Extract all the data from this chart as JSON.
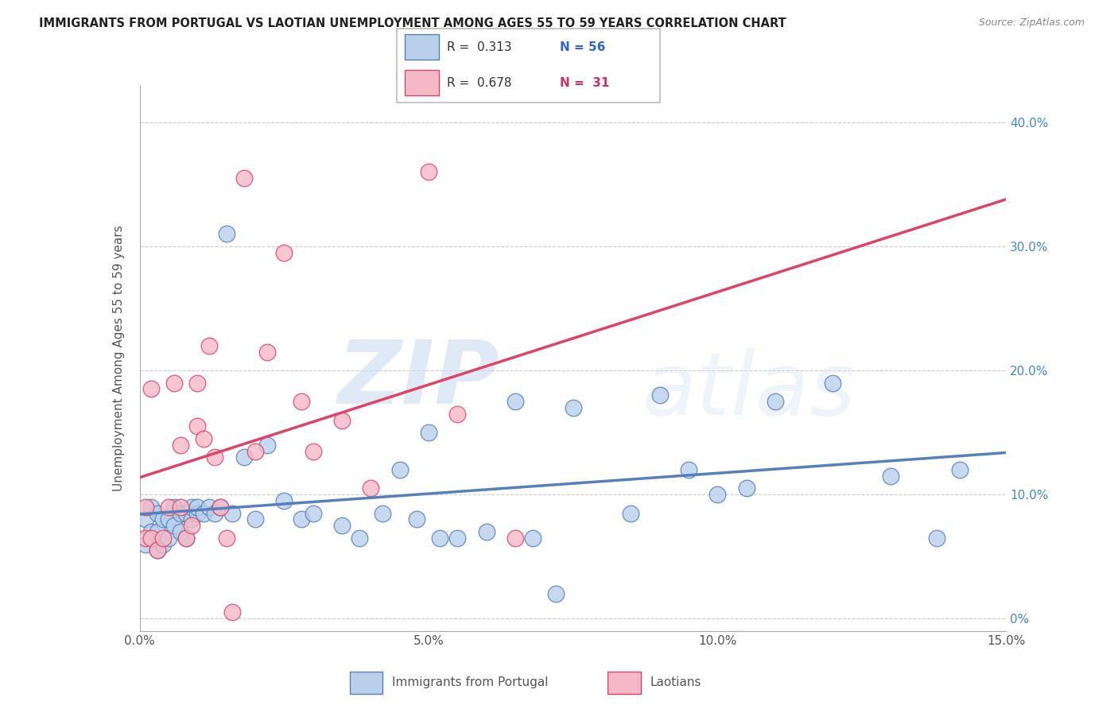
{
  "title": "IMMIGRANTS FROM PORTUGAL VS LAOTIAN UNEMPLOYMENT AMONG AGES 55 TO 59 YEARS CORRELATION CHART",
  "source": "Source: ZipAtlas.com",
  "ylabel": "Unemployment Among Ages 55 to 59 years",
  "xlim": [
    0.0,
    0.15
  ],
  "ylim": [
    -0.01,
    0.43
  ],
  "xticks": [
    0.0,
    0.025,
    0.05,
    0.075,
    0.1,
    0.125,
    0.15
  ],
  "xticklabels": [
    "0.0%",
    "",
    "5.0%",
    "",
    "10.0%",
    "",
    "15.0%"
  ],
  "yticks": [
    0.0,
    0.1,
    0.2,
    0.3,
    0.4
  ],
  "yticklabels": [
    "0%",
    "10.0%",
    "20.0%",
    "30.0%",
    "40.0%"
  ],
  "legend1_r": "0.313",
  "legend1_n": "56",
  "legend2_r": "0.678",
  "legend2_n": "31",
  "color_blue": "#b8d0ea",
  "color_pink": "#f5b8c8",
  "line_blue": "#5580bb",
  "line_pink": "#dd4466",
  "watermark_zip": "ZIP",
  "watermark_atlas": "atlas",
  "blue_points_x": [
    0.001,
    0.001,
    0.002,
    0.002,
    0.003,
    0.003,
    0.003,
    0.004,
    0.004,
    0.005,
    0.005,
    0.006,
    0.006,
    0.007,
    0.007,
    0.008,
    0.008,
    0.009,
    0.009,
    0.01,
    0.01,
    0.011,
    0.012,
    0.013,
    0.014,
    0.015,
    0.016,
    0.018,
    0.02,
    0.022,
    0.025,
    0.028,
    0.03,
    0.035,
    0.038,
    0.042,
    0.045,
    0.048,
    0.05,
    0.052,
    0.055,
    0.06,
    0.065,
    0.068,
    0.072,
    0.075,
    0.085,
    0.09,
    0.095,
    0.1,
    0.105,
    0.11,
    0.12,
    0.13,
    0.138,
    0.142
  ],
  "blue_points_y": [
    0.06,
    0.08,
    0.07,
    0.09,
    0.055,
    0.07,
    0.085,
    0.06,
    0.08,
    0.065,
    0.08,
    0.075,
    0.09,
    0.07,
    0.085,
    0.065,
    0.085,
    0.08,
    0.09,
    0.085,
    0.09,
    0.085,
    0.09,
    0.085,
    0.09,
    0.31,
    0.085,
    0.13,
    0.08,
    0.14,
    0.095,
    0.08,
    0.085,
    0.075,
    0.065,
    0.085,
    0.12,
    0.08,
    0.15,
    0.065,
    0.065,
    0.07,
    0.175,
    0.065,
    0.02,
    0.17,
    0.085,
    0.18,
    0.12,
    0.1,
    0.105,
    0.175,
    0.19,
    0.115,
    0.065,
    0.12
  ],
  "pink_points_x": [
    0.001,
    0.001,
    0.002,
    0.002,
    0.003,
    0.004,
    0.005,
    0.006,
    0.007,
    0.007,
    0.008,
    0.009,
    0.01,
    0.01,
    0.011,
    0.012,
    0.013,
    0.014,
    0.015,
    0.016,
    0.018,
    0.02,
    0.022,
    0.025,
    0.028,
    0.03,
    0.035,
    0.04,
    0.05,
    0.055,
    0.065
  ],
  "pink_points_y": [
    0.065,
    0.09,
    0.185,
    0.065,
    0.055,
    0.065,
    0.09,
    0.19,
    0.14,
    0.09,
    0.065,
    0.075,
    0.155,
    0.19,
    0.145,
    0.22,
    0.13,
    0.09,
    0.065,
    0.005,
    0.355,
    0.135,
    0.215,
    0.295,
    0.175,
    0.135,
    0.16,
    0.105,
    0.36,
    0.165,
    0.065
  ]
}
